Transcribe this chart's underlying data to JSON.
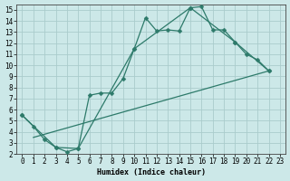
{
  "xlabel": "Humidex (Indice chaleur)",
  "bg_color": "#cce8e8",
  "grid_color": "#aacccc",
  "line_color": "#2d7a6a",
  "xlim": [
    -0.5,
    23.5
  ],
  "ylim": [
    2,
    15.5
  ],
  "xticks": [
    0,
    1,
    2,
    3,
    4,
    5,
    6,
    7,
    8,
    9,
    10,
    11,
    12,
    13,
    14,
    15,
    16,
    17,
    18,
    19,
    20,
    21,
    22,
    23
  ],
  "yticks": [
    2,
    3,
    4,
    5,
    6,
    7,
    8,
    9,
    10,
    11,
    12,
    13,
    14,
    15
  ],
  "line1_x": [
    0,
    1,
    2,
    3,
    4,
    5,
    6,
    7,
    8,
    9,
    10,
    11,
    12,
    13,
    14,
    15,
    16,
    17,
    18,
    19,
    20,
    21,
    22
  ],
  "line1_y": [
    5.5,
    4.5,
    3.3,
    2.6,
    2.2,
    2.5,
    7.3,
    7.5,
    7.5,
    8.8,
    11.5,
    14.3,
    13.1,
    13.2,
    13.1,
    15.2,
    15.3,
    13.2,
    13.2,
    12.1,
    11.0,
    10.5,
    9.5
  ],
  "line2_x": [
    0,
    3,
    5,
    10,
    15,
    19,
    22
  ],
  "line2_y": [
    5.5,
    2.6,
    2.5,
    11.5,
    15.2,
    12.1,
    9.5
  ],
  "line3_x": [
    1,
    22
  ],
  "line3_y": [
    3.5,
    9.5
  ],
  "markersize": 2.5,
  "linewidth": 0.9,
  "tick_fontsize": 5.5,
  "xlabel_fontsize": 6.0
}
